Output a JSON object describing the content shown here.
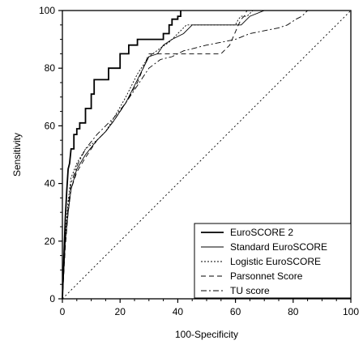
{
  "chart_data": {
    "type": "line",
    "title": "",
    "xlabel": "100-Specificity",
    "ylabel": "Sensitivity",
    "xlim": [
      0,
      100
    ],
    "ylim": [
      0,
      100
    ],
    "x_ticks": [
      "0",
      "20",
      "40",
      "60",
      "80",
      "100"
    ],
    "y_ticks": [
      "0",
      "20",
      "40",
      "60",
      "80",
      "100"
    ],
    "grid": false,
    "legend_position": "bottom-right",
    "reference_line": {
      "style": "dotted",
      "from": [
        0,
        0
      ],
      "to": [
        100,
        100
      ]
    },
    "series": [
      {
        "name": "EuroSCORE 2",
        "style": "solid-thick",
        "x": [
          0,
          0.5,
          1,
          1.5,
          2,
          2.5,
          3,
          4,
          4,
          5,
          5,
          6,
          6,
          8,
          8,
          10,
          10,
          11,
          11,
          16,
          16,
          20,
          20,
          23,
          23,
          26,
          26,
          28,
          28,
          35,
          35,
          37,
          37,
          38,
          38,
          40,
          40,
          41,
          41
        ],
        "y": [
          0,
          14,
          28,
          37,
          45,
          47,
          52,
          52,
          57,
          57,
          59,
          59,
          61,
          61,
          66,
          66,
          71,
          71,
          76,
          76,
          80,
          80,
          85,
          85,
          88,
          88,
          90,
          90,
          90,
          90,
          92,
          92,
          95,
          95,
          97,
          97,
          98,
          98,
          100
        ]
      },
      {
        "name": "Standard EuroSCORE",
        "style": "solid-thin",
        "x": [
          0,
          1,
          2,
          3,
          5,
          8,
          12,
          15,
          18,
          22,
          26,
          30,
          33,
          35,
          38,
          42,
          45,
          48,
          53,
          55,
          62,
          65,
          70,
          75
        ],
        "y": [
          0,
          20,
          30,
          38,
          45,
          50,
          55,
          58,
          62,
          68,
          76,
          84,
          85,
          88,
          90,
          92,
          95,
          95,
          95,
          95,
          95,
          98,
          100,
          100
        ]
      },
      {
        "name": "Logistic EuroSCORE",
        "style": "dotted",
        "x": [
          0,
          1,
          2,
          3,
          5,
          8,
          12,
          15,
          18,
          22,
          26,
          30,
          34,
          37,
          40,
          43,
          46,
          50,
          55,
          60,
          61,
          62,
          64,
          66,
          70
        ],
        "y": [
          0,
          22,
          34,
          42,
          47,
          52,
          55,
          58,
          63,
          70,
          78,
          84,
          87,
          89,
          92,
          95,
          95,
          95,
          95,
          95,
          97,
          98,
          98,
          100,
          100
        ]
      },
      {
        "name": "Parsonnet Score",
        "style": "dashed",
        "x": [
          0,
          1,
          2,
          3,
          5,
          8,
          12,
          15,
          18,
          22,
          26,
          30,
          34,
          38,
          42,
          46,
          50,
          55,
          58,
          61,
          62,
          63,
          64
        ],
        "y": [
          0,
          18,
          30,
          38,
          44,
          49,
          55,
          58,
          62,
          68,
          75,
          85,
          85,
          85,
          85,
          85,
          85,
          85,
          88,
          95,
          97,
          98,
          100
        ]
      },
      {
        "name": "TU score",
        "style": "dash-dot",
        "x": [
          0,
          1,
          2,
          3,
          5,
          8,
          12,
          15,
          18,
          22,
          26,
          30,
          34,
          38,
          42,
          46,
          50,
          55,
          60,
          65,
          70,
          75,
          78,
          81,
          83,
          85,
          88
        ],
        "y": [
          0,
          20,
          32,
          40,
          46,
          52,
          57,
          60,
          63,
          68,
          74,
          80,
          83,
          84,
          86,
          87,
          88,
          89,
          90,
          92,
          93,
          94,
          95,
          97,
          98,
          100,
          100
        ]
      }
    ]
  }
}
